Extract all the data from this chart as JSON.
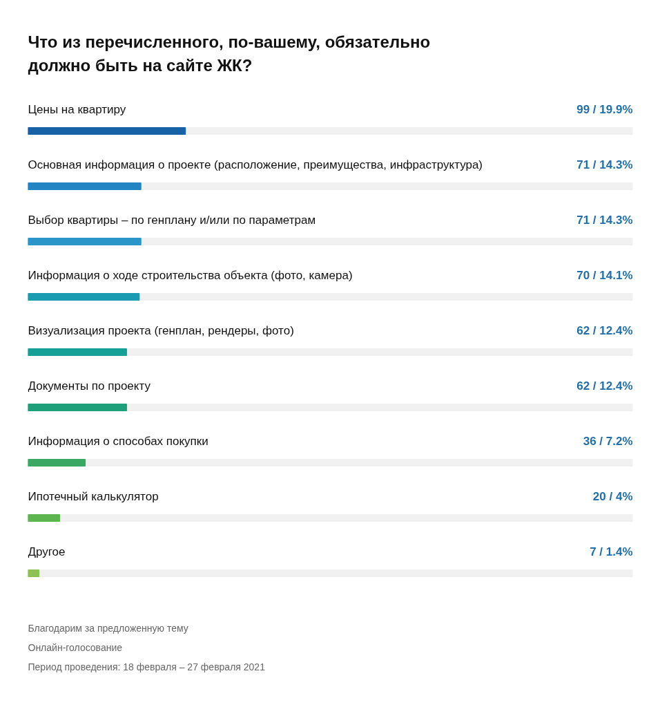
{
  "chart_data": {
    "type": "bar",
    "orientation": "horizontal",
    "title": "Что из перечисленного, по-вашему, обязательно\nдолжно быть на сайте ЖК?",
    "categories": [
      "Цены на квартиру",
      "Основная информация о проекте (расположение, преимущества, инфраструктура)",
      "Выбор квартиры – по генплану и/или по параметрам",
      "Информация о ходе строительства объекта (фото, камера)",
      "Визуализация проекта (генплан, рендеры, фото)",
      "Документы по проекту",
      "Информация о способах покупки",
      "Ипотечный калькулятор",
      "Другое"
    ],
    "values": [
      99,
      71,
      71,
      70,
      62,
      62,
      36,
      20,
      7
    ],
    "colors": [
      "#1762a7",
      "#2384c3",
      "#2a95c9",
      "#1b9bb2",
      "#14a096",
      "#1ea07a",
      "#38a862",
      "#5cb54f",
      "#8dc154"
    ],
    "value_labels": [
      "99 / 19.9%",
      "71 / 14.3%",
      "71 / 14.3%",
      "70 / 14.1%",
      "62 / 12.4%",
      "62 / 12.4%",
      "36 / 7.2%",
      "20 / 4%",
      "7 / 1.4%"
    ],
    "xlim": [
      0,
      380
    ],
    "tick_labels": false,
    "grid": false,
    "annotations": [
      "Благодарим за предложенную тему",
      "Онлайн-голосование",
      "Период проведения: 18 февраля – 27 февраля 2021"
    ]
  }
}
